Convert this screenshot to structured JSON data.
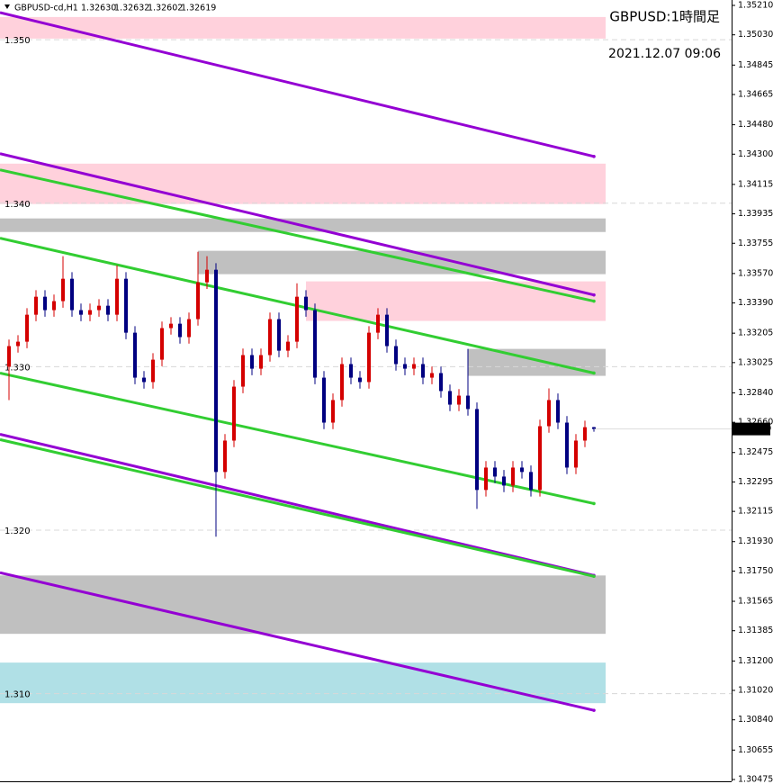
{
  "chart_data": {
    "type": "candlestick",
    "header": {
      "symbol": "GBPUSD-cd,H1",
      "values": [
        {
          "value": 1.3263,
          "label": "1.32630"
        },
        {
          "value": 1.32632,
          "label": "1.32632"
        },
        {
          "value": 1.32602,
          "label": "1.32602"
        },
        {
          "value": 1.32619,
          "label": "1.32619"
        }
      ]
    },
    "title": "GBPUSD:1時間足",
    "subtitle": "2021.12.07 09:06",
    "ylim": [
      1.30475,
      1.3521
    ],
    "yticks": [
      {
        "value": 1.3521,
        "label": "1.35210"
      },
      {
        "value": 1.3503,
        "label": "1.35030"
      },
      {
        "value": 1.34845,
        "label": "1.34845"
      },
      {
        "value": 1.34665,
        "label": "1.34665"
      },
      {
        "value": 1.3448,
        "label": "1.34480"
      },
      {
        "value": 1.343,
        "label": "1.34300"
      },
      {
        "value": 1.34115,
        "label": "1.34115"
      },
      {
        "value": 1.33935,
        "label": "1.33935"
      },
      {
        "value": 1.33755,
        "label": "1.33755"
      },
      {
        "value": 1.3357,
        "label": "1.33570"
      },
      {
        "value": 1.3339,
        "label": "1.33390"
      },
      {
        "value": 1.33205,
        "label": "1.33205"
      },
      {
        "value": 1.33025,
        "label": "1.33025"
      },
      {
        "value": 1.3284,
        "label": "1.32840"
      },
      {
        "value": 1.3266,
        "label": "1.32660"
      },
      {
        "value": 1.32475,
        "label": "1.32475"
      },
      {
        "value": 1.32295,
        "label": "1.32295"
      },
      {
        "value": 1.32115,
        "label": "1.32115"
      },
      {
        "value": 1.3193,
        "label": "1.31930"
      },
      {
        "value": 1.3175,
        "label": "1.31750"
      },
      {
        "value": 1.31565,
        "label": "1.31565"
      },
      {
        "value": 1.31385,
        "label": "1.31385"
      },
      {
        "value": 1.312,
        "label": "1.31200"
      },
      {
        "value": 1.3102,
        "label": "1.31020"
      },
      {
        "value": 1.3084,
        "label": "1.30840"
      },
      {
        "value": 1.30655,
        "label": "1.30655"
      },
      {
        "value": 1.30475,
        "label": "1.30475"
      }
    ],
    "current_price": {
      "value": 1.32619,
      "label": "1.32619"
    },
    "levels": [
      {
        "value": 1.35,
        "label": "1.350"
      },
      {
        "value": 1.34,
        "label": "1.340"
      },
      {
        "value": 1.33,
        "label": "1.330"
      },
      {
        "value": 1.32,
        "label": "1.320"
      },
      {
        "value": 1.31,
        "label": "1.310"
      }
    ],
    "up_color": "#d40000",
    "down_color": "#000080",
    "open": [
      1.33,
      1.33126,
      1.33153,
      1.33318,
      1.33428,
      1.33346,
      1.33401,
      1.33538,
      1.33346,
      1.33318,
      1.33346,
      1.33373,
      1.33318,
      1.33538,
      1.33208,
      1.32933,
      1.32906,
      1.33043,
      1.33236,
      1.33263,
      1.33181,
      1.33291,
      1.33516,
      1.33593,
      1.32356,
      1.32548,
      1.32878,
      1.33071,
      1.32988,
      1.33071,
      1.33291,
      1.33098,
      1.33153,
      1.33428,
      1.33346,
      1.32933,
      1.32658,
      1.32796,
      1.33016,
      1.32933,
      1.32906,
      1.33208,
      1.33318,
      1.33126,
      1.33016,
      1.32988,
      1.33016,
      1.32933,
      1.32961,
      1.32851,
      1.32768,
      1.32823,
      1.32741,
      1.32246,
      1.32383,
      1.32328,
      1.32273,
      1.32383,
      1.32356,
      1.32246,
      1.32636,
      1.32796,
      1.32658,
      1.32383,
      1.32548,
      1.3263
    ],
    "high": [
      1.33166,
      1.33193,
      1.33358,
      1.33468,
      1.33468,
      1.33441,
      1.33676,
      1.33578,
      1.33386,
      1.33386,
      1.33413,
      1.33413,
      1.3362,
      1.33578,
      1.33248,
      1.32973,
      1.33083,
      1.33276,
      1.33303,
      1.33303,
      1.33331,
      1.33703,
      1.33676,
      1.33633,
      1.32588,
      1.32918,
      1.33111,
      1.33111,
      1.33111,
      1.33331,
      1.33331,
      1.33193,
      1.3351,
      1.33468,
      1.33386,
      1.32973,
      1.32836,
      1.33056,
      1.33056,
      1.32973,
      1.33248,
      1.33358,
      1.33358,
      1.33166,
      1.33056,
      1.33056,
      1.33056,
      1.33001,
      1.33001,
      1.32891,
      1.32863,
      1.33109,
      1.32781,
      1.32423,
      1.32423,
      1.32368,
      1.32423,
      1.32423,
      1.32396,
      1.32676,
      1.32867,
      1.32836,
      1.32698,
      1.32588,
      1.3267,
      1.32632
    ],
    "low": [
      1.32796,
      1.33086,
      1.33113,
      1.33278,
      1.33306,
      1.33306,
      1.33361,
      1.33306,
      1.33278,
      1.33278,
      1.33306,
      1.33278,
      1.33278,
      1.33168,
      1.32893,
      1.32866,
      1.32866,
      1.33003,
      1.33196,
      1.33141,
      1.33141,
      1.33251,
      1.33476,
      1.3196,
      1.32316,
      1.32508,
      1.32838,
      1.32948,
      1.32948,
      1.33031,
      1.33058,
      1.33058,
      1.33113,
      1.33306,
      1.32893,
      1.32618,
      1.32618,
      1.32756,
      1.32893,
      1.32866,
      1.32866,
      1.33168,
      1.33086,
      1.32976,
      1.32948,
      1.32948,
      1.32893,
      1.32893,
      1.32811,
      1.32728,
      1.32728,
      1.32701,
      1.3213,
      1.32206,
      1.32288,
      1.32233,
      1.32233,
      1.32316,
      1.32206,
      1.32206,
      1.32596,
      1.32618,
      1.32343,
      1.32343,
      1.32508,
      1.32602
    ],
    "close": [
      1.33126,
      1.33153,
      1.33318,
      1.33428,
      1.33346,
      1.33401,
      1.33538,
      1.33346,
      1.33318,
      1.33346,
      1.33373,
      1.33318,
      1.33538,
      1.33208,
      1.32933,
      1.32906,
      1.33043,
      1.33236,
      1.33263,
      1.33181,
      1.33291,
      1.33516,
      1.33593,
      1.32356,
      1.32548,
      1.32878,
      1.33071,
      1.32988,
      1.33071,
      1.33291,
      1.33098,
      1.33153,
      1.33428,
      1.33346,
      1.32933,
      1.32658,
      1.32796,
      1.33016,
      1.32933,
      1.32906,
      1.33208,
      1.33318,
      1.33126,
      1.33016,
      1.32988,
      1.33016,
      1.32933,
      1.32961,
      1.32851,
      1.32768,
      1.32823,
      1.32741,
      1.32246,
      1.32383,
      1.32328,
      1.32273,
      1.32383,
      1.32356,
      1.32246,
      1.32636,
      1.32796,
      1.32658,
      1.32383,
      1.32548,
      1.3263,
      1.32619
    ],
    "zones": [
      {
        "from": -1,
        "top": 1.35139,
        "bottom": 1.35007,
        "color": "#ffd1dc"
      },
      {
        "from": -1,
        "top": 1.34242,
        "bottom": 1.33995,
        "color": "#ffd1dc"
      },
      {
        "from": -1,
        "top": 1.33907,
        "bottom": 1.33824,
        "color": "#c0c0c0"
      },
      {
        "from": 21,
        "top": 1.33709,
        "bottom": 1.33566,
        "color": "#c0c0c0"
      },
      {
        "from": 33,
        "top": 1.33522,
        "bottom": 1.3328,
        "color": "#ffd1dc"
      },
      {
        "from": 51,
        "top": 1.33109,
        "bottom": 1.32944,
        "color": "#c0c0c0"
      },
      {
        "from": -1,
        "top": 1.31723,
        "bottom": 1.31366,
        "color": "#c0c0c0"
      },
      {
        "from": -1,
        "top": 1.3119,
        "bottom": 1.30942,
        "color": "#b0e0e6"
      }
    ],
    "trendlines": [
      {
        "x": [
          -1,
          65
        ],
        "y": [
          1.35166,
          1.34286
        ],
        "color": "#9400d3"
      },
      {
        "x": [
          -1,
          65
        ],
        "y": [
          1.34303,
          1.33439
        ],
        "color": "#9400d3"
      },
      {
        "x": [
          -1,
          65
        ],
        "y": [
          1.34204,
          1.33401
        ],
        "color": "#32cd32"
      },
      {
        "x": [
          -1,
          65
        ],
        "y": [
          1.33786,
          1.32961
        ],
        "color": "#32cd32"
      },
      {
        "x": [
          -1,
          65
        ],
        "y": [
          1.32961,
          1.32163
        ],
        "color": "#32cd32"
      },
      {
        "x": [
          -1,
          65
        ],
        "y": [
          1.32587,
          1.31723
        ],
        "color": "#9400d3"
      },
      {
        "x": [
          -1,
          65
        ],
        "y": [
          1.32554,
          1.31718
        ],
        "color": "#32cd32"
      },
      {
        "x": [
          -1,
          65
        ],
        "y": [
          1.3174,
          1.30898
        ],
        "color": "#9400d3"
      }
    ]
  }
}
